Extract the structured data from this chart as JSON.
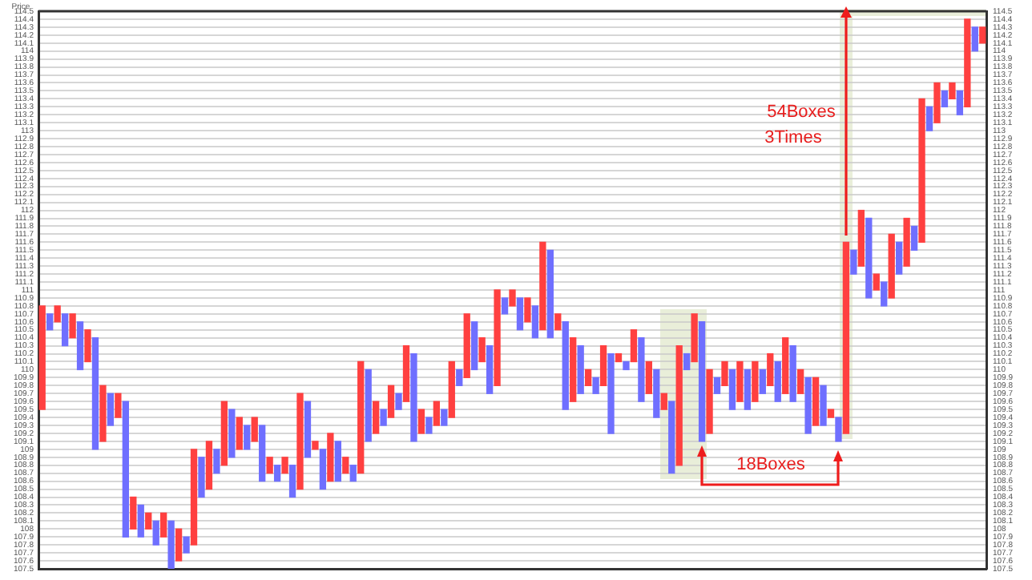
{
  "chart_data": {
    "type": "bar",
    "ylabel": "Price",
    "categories": [
      null,
      null,
      null,
      null,
      null,
      null,
      null,
      null,
      null,
      null,
      null,
      null,
      null,
      null,
      null,
      null,
      null,
      null,
      null,
      null,
      null,
      null,
      null,
      null,
      null,
      null,
      null,
      null,
      null,
      null,
      null,
      null,
      null,
      null,
      null,
      null,
      null,
      null,
      null,
      null,
      null,
      null,
      null,
      null,
      null,
      null,
      null,
      null,
      null,
      null,
      null,
      null,
      null,
      null,
      null,
      null,
      null,
      null,
      null,
      null,
      null,
      null,
      null,
      null,
      null,
      null,
      null,
      null,
      null,
      null,
      null,
      null,
      null,
      null,
      null,
      null,
      null,
      null,
      null,
      null,
      null,
      null,
      null,
      null,
      null,
      null,
      null,
      null,
      null,
      null,
      null,
      null,
      null,
      null,
      null,
      null,
      null,
      null,
      null,
      null,
      null,
      null,
      null,
      null,
      null,
      null,
      null,
      null,
      null,
      null,
      null,
      null,
      null,
      null,
      null,
      null,
      null,
      null,
      null,
      null,
      null,
      null,
      null,
      null,
      null
    ],
    "ylim": [
      107.5,
      114.5
    ],
    "y2lim": [
      107.5,
      114.5
    ],
    "yticks": [
      107.5,
      107.6,
      107.7,
      107.8,
      107.9,
      108,
      108.1,
      108.2,
      108.3,
      108.4,
      108.5,
      108.6,
      108.7,
      108.8,
      108.9,
      109,
      109.1,
      109.2,
      109.3,
      109.4,
      109.5,
      109.6,
      109.7,
      109.8,
      109.9,
      110,
      110.1,
      110.2,
      110.3,
      110.4,
      110.5,
      110.6,
      110.7,
      110.8,
      110.9,
      111,
      111.1,
      111.2,
      111.3,
      111.4,
      111.5,
      111.6,
      111.7,
      111.8,
      111.9,
      112,
      112.1,
      112.2,
      112.3,
      112.4,
      112.5,
      112.6,
      112.7,
      112.8,
      112.9,
      113,
      113.1,
      113.2,
      113.3,
      113.4,
      113.5,
      113.6,
      113.7,
      113.8,
      113.9,
      114,
      114.1,
      114.2,
      114.3,
      114.4,
      114.5
    ],
    "y2ticks": [
      107.5,
      107.6,
      107.7,
      107.8,
      107.9,
      108,
      108.1,
      108.2,
      108.3,
      108.4,
      108.5,
      108.6,
      108.7,
      108.8,
      108.9,
      109,
      109.1,
      109.2,
      109.3,
      109.4,
      109.5,
      109.6,
      109.7,
      109.8,
      109.9,
      110,
      110.1,
      110.2,
      110.3,
      110.4,
      110.5,
      110.6,
      110.7,
      110.8,
      110.9,
      111,
      111.1,
      111.2,
      111.3,
      111.4,
      111.5,
      111.6,
      111.7,
      111.8,
      111.9,
      112,
      112.1,
      112.2,
      112.3,
      112.4,
      112.5,
      112.6,
      112.7,
      112.8,
      112.9,
      113,
      113.1,
      113.2,
      113.3,
      113.4,
      113.5,
      113.6,
      113.7,
      113.8,
      113.9,
      114,
      114.1,
      114.2,
      114.3,
      114.4,
      114.5
    ],
    "tick_labels": "y",
    "grid": "y",
    "legend": false,
    "annotations": [
      "54Boxes",
      "3Times",
      "18Boxes"
    ],
    "base": [
      109.5,
      110.5,
      110.6,
      110.3,
      110.4,
      110,
      110.1,
      109,
      109.1,
      109.3,
      109.4,
      107.9,
      108,
      107.9,
      108,
      107.8,
      107.9,
      107.5,
      107.6,
      107.7,
      107.8,
      108.4,
      108.5,
      108.7,
      108.8,
      108.9,
      109,
      109,
      109.1,
      108.6,
      108.7,
      108.6,
      108.7,
      108.4,
      108.5,
      108.9,
      109,
      108.5,
      108.6,
      108.6,
      108.7,
      108.6,
      108.7,
      109.1,
      109.2,
      109.3,
      109.4,
      109.5,
      109.6,
      109.1,
      109.2,
      109.2,
      109.3,
      109.3,
      109.4,
      109.8,
      109.9,
      110,
      110.1,
      109.7,
      109.8,
      110.7,
      110.8,
      110.5,
      110.6,
      110.4,
      110.5,
      110.4,
      110.5,
      109.5,
      109.6,
      109.7,
      109.8,
      109.7,
      109.8,
      109.2,
      110.1,
      110,
      110.1,
      109.6,
      109.7,
      109.4,
      109.5,
      108.7,
      108.8,
      110,
      110.1,
      109.1,
      109.2,
      109.7,
      109.8,
      109.5,
      109.6,
      109.5,
      109.6,
      109.7,
      109.8,
      109.6,
      109.7,
      109.6,
      109.7,
      109.2,
      109.3,
      109.3,
      109.4,
      109.1,
      109.2,
      111.2,
      111.3,
      110.9,
      111,
      110.8,
      110.9,
      111.2,
      111.3,
      111.5,
      111.6,
      113,
      113.1,
      113.3,
      113.4,
      113.2,
      113.3,
      114,
      114.1
    ],
    "values": [
      1.3,
      0.2,
      0.2,
      0.4,
      0.3,
      0.6,
      0.4,
      1.4,
      0.7,
      0.4,
      0.3,
      1.7,
      0.4,
      0.4,
      0.2,
      0.3,
      0.3,
      0.6,
      0.4,
      0.2,
      1.2,
      0.5,
      0.6,
      0.3,
      0.8,
      0.6,
      0.4,
      0.3,
      0.3,
      0.7,
      0.2,
      0.2,
      0.2,
      0.4,
      1.2,
      0.7,
      0.1,
      0.5,
      0.6,
      0.5,
      0.2,
      0.2,
      1.4,
      0.9,
      0.4,
      0.2,
      0.4,
      0.2,
      0.7,
      1.1,
      0.3,
      0.2,
      0.3,
      0.2,
      0.7,
      0.2,
      0.8,
      0.6,
      0.3,
      0.6,
      1.2,
      0.2,
      0.2,
      0.4,
      0.3,
      0.4,
      1.1,
      1.1,
      0.2,
      1.1,
      0.8,
      0.6,
      0.2,
      0.2,
      0.5,
      1,
      0.1,
      0.1,
      0.4,
      0.8,
      0.4,
      0.6,
      0.2,
      0.9,
      1.5,
      0.2,
      0.6,
      1.5,
      0.8,
      0.2,
      0.3,
      0.5,
      0.5,
      0.5,
      0.5,
      0.3,
      0.4,
      0.5,
      0.7,
      0.7,
      0.3,
      0.7,
      0.6,
      0.5,
      0.1,
      0.3,
      2.4,
      0.3,
      0.7,
      1,
      0.2,
      0.3,
      0.8,
      0.4,
      0.6,
      0.3,
      1.8,
      0.3,
      0.5,
      0.2,
      0.2,
      0.3,
      1.1,
      0.3,
      0.2
    ],
    "colors": [
      "#ff4040",
      "#6f6fff",
      "#ff4040",
      "#6f6fff",
      "#ff4040",
      "#6f6fff",
      "#ff4040",
      "#6f6fff",
      "#ff4040",
      "#6f6fff",
      "#ff4040",
      "#6f6fff",
      "#ff4040",
      "#6f6fff",
      "#ff4040",
      "#6f6fff",
      "#ff4040",
      "#6f6fff",
      "#ff4040",
      "#6f6fff",
      "#ff4040",
      "#6f6fff",
      "#ff4040",
      "#6f6fff",
      "#ff4040",
      "#6f6fff",
      "#ff4040",
      "#6f6fff",
      "#ff4040",
      "#6f6fff",
      "#ff4040",
      "#6f6fff",
      "#ff4040",
      "#6f6fff",
      "#ff4040",
      "#6f6fff",
      "#ff4040",
      "#6f6fff",
      "#ff4040",
      "#6f6fff",
      "#ff4040",
      "#6f6fff",
      "#ff4040",
      "#6f6fff",
      "#ff4040",
      "#6f6fff",
      "#ff4040",
      "#6f6fff",
      "#ff4040",
      "#6f6fff",
      "#ff4040",
      "#6f6fff",
      "#ff4040",
      "#6f6fff",
      "#ff4040",
      "#6f6fff",
      "#ff4040",
      "#6f6fff",
      "#ff4040",
      "#6f6fff",
      "#ff4040",
      "#6f6fff",
      "#ff4040",
      "#6f6fff",
      "#ff4040",
      "#6f6fff",
      "#ff4040",
      "#6f6fff",
      "#ff4040",
      "#6f6fff",
      "#ff4040",
      "#6f6fff",
      "#ff4040",
      "#6f6fff",
      "#ff4040",
      "#6f6fff",
      "#ff4040",
      "#6f6fff",
      "#ff4040",
      "#6f6fff",
      "#ff4040",
      "#6f6fff",
      "#ff4040",
      "#6f6fff",
      "#ff4040",
      "#6f6fff",
      "#ff4040",
      "#6f6fff",
      "#ff4040",
      "#6f6fff",
      "#ff4040",
      "#6f6fff",
      "#ff4040",
      "#6f6fff",
      "#ff4040",
      "#6f6fff",
      "#ff4040",
      "#6f6fff",
      "#ff4040",
      "#6f6fff",
      "#ff4040",
      "#6f6fff",
      "#ff4040",
      "#6f6fff",
      "#ff4040",
      "#6f6fff",
      "#ff4040",
      "#6f6fff",
      "#ff4040",
      "#6f6fff",
      "#ff4040",
      "#6f6fff",
      "#ff4040",
      "#6f6fff",
      "#ff4040",
      "#6f6fff",
      "#ff4040",
      "#6f6fff",
      "#ff4040",
      "#6f6fff",
      "#ff4040",
      "#6f6fff",
      "#ff4040",
      "#6f6fff",
      "#ff4040"
    ]
  }
}
